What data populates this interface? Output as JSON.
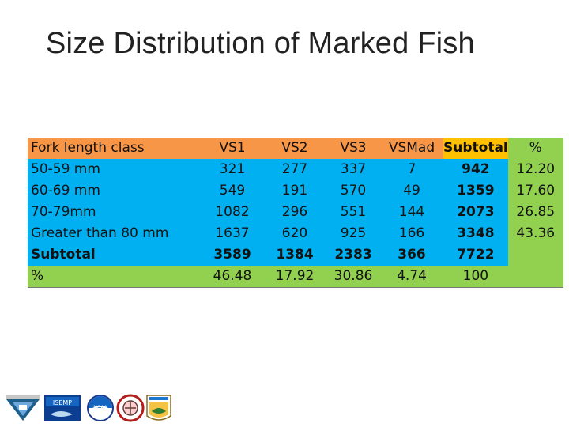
{
  "slide": {
    "title": "Size Distribution of Marked Fish"
  },
  "table": {
    "headers": [
      "Fork length class",
      "VS1",
      "VS2",
      "VS3",
      "VSMad",
      "Subtotal",
      "%"
    ],
    "rows": [
      [
        "50-59 mm",
        "321",
        "277",
        "337",
        "7",
        "942",
        "12.20"
      ],
      [
        "60-69 mm",
        "549",
        "191",
        "570",
        "49",
        "1359",
        "17.60"
      ],
      [
        "70-79mm",
        "1082",
        "296",
        "551",
        "144",
        "2073",
        "26.85"
      ],
      [
        "Greater than 80 mm",
        "1637",
        "620",
        "925",
        "166",
        "3348",
        "43.36"
      ],
      [
        "Subtotal",
        "3589",
        "1384",
        "2383",
        "366",
        "7722",
        ""
      ],
      [
        "%",
        "46.48",
        "17.92",
        "30.86",
        "4.74",
        "100",
        ""
      ]
    ]
  },
  "colors": {
    "header": "#f79646",
    "body": "#00b0f0",
    "totals": "#92d050"
  },
  "logos": [
    "usgs-style-emblem-icon",
    "isemp-logo-icon",
    "noaa-logo-icon",
    "tribal-seal-icon",
    "fish-wildlife-service-logo-icon"
  ]
}
